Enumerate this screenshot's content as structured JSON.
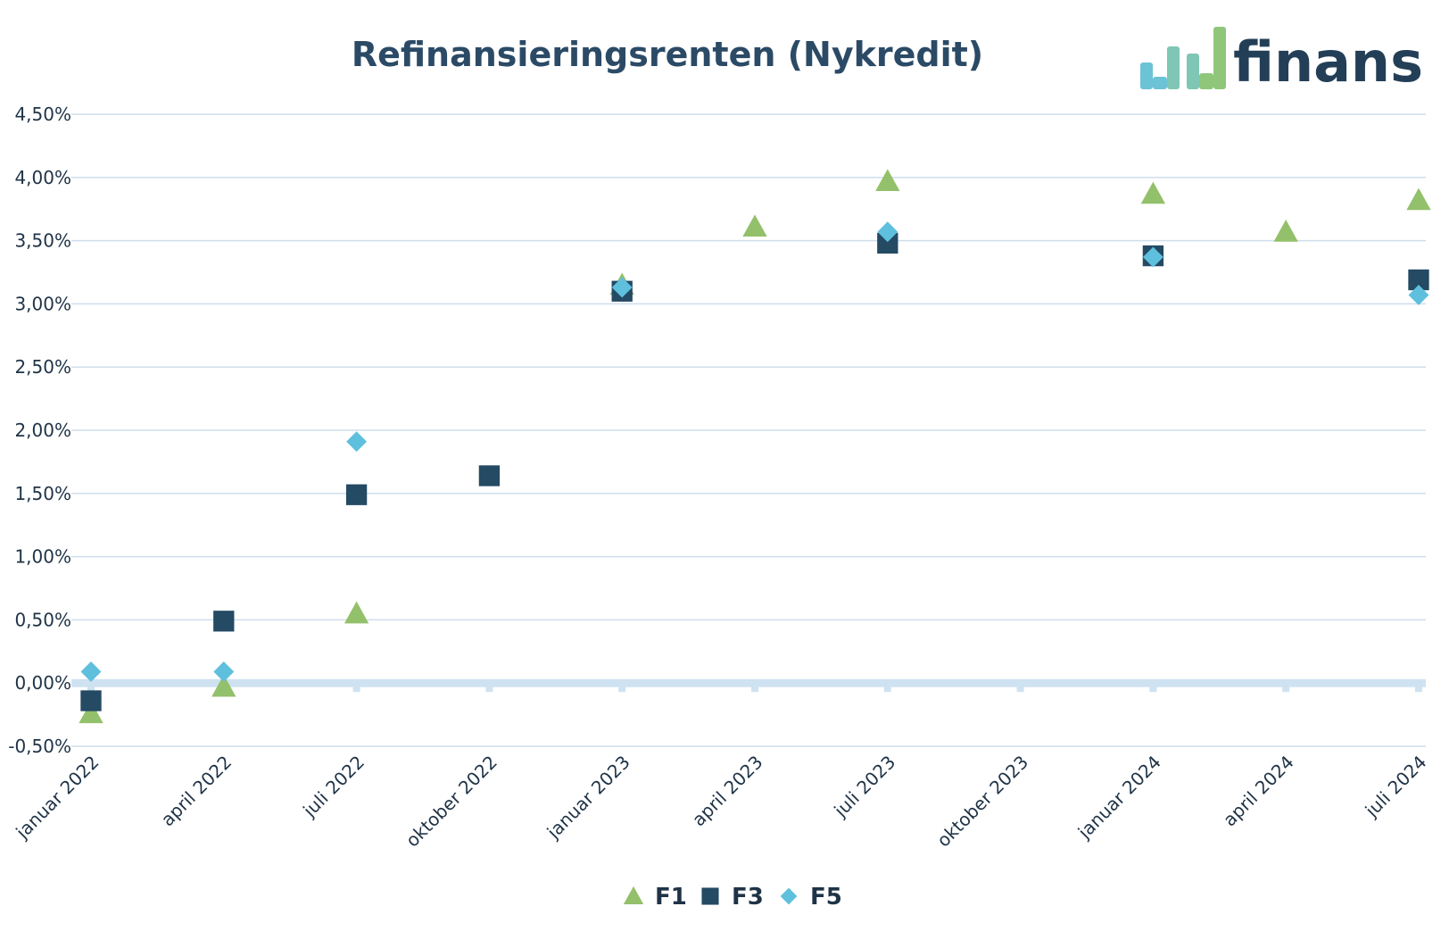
{
  "brand": {
    "name": "finans",
    "logo_colors": [
      "#6cc3d5",
      "#7fc6b4",
      "#8fc67a"
    ],
    "text_color": "#233f57"
  },
  "chart_data": {
    "type": "scatter",
    "title": "Refinansieringsrenten (Nykredit)",
    "xlabel": "",
    "ylabel": "",
    "x_categories": [
      "januar 2022",
      "april 2022",
      "juli 2022",
      "oktober 2022",
      "januar 2023",
      "april 2023",
      "juli 2023",
      "oktober 2023",
      "januar 2024",
      "april 2024",
      "juli 2024"
    ],
    "y_ticks": [
      "4,50%",
      "4,00%",
      "3,50%",
      "3,00%",
      "2,50%",
      "2,00%",
      "1,50%",
      "1,00%",
      "0,50%",
      "0,00%",
      "-0,50%"
    ],
    "y_tick_values": [
      4.5,
      4.0,
      3.5,
      3.0,
      2.5,
      2.0,
      1.5,
      1.0,
      0.5,
      0.0,
      -0.5
    ],
    "ylim": [
      -0.5,
      4.5
    ],
    "grid": true,
    "legend_position": "bottom-center",
    "series": [
      {
        "name": "F1",
        "marker": "triangle",
        "color": "#93c06a",
        "points": [
          {
            "x": "januar 2022",
            "y": -0.24
          },
          {
            "x": "april 2022",
            "y": -0.03
          },
          {
            "x": "juli 2022",
            "y": 0.55
          },
          {
            "x": "januar 2023",
            "y": 3.15
          },
          {
            "x": "april 2023",
            "y": 3.61
          },
          {
            "x": "juli 2023",
            "y": 3.97
          },
          {
            "x": "januar 2024",
            "y": 3.87
          },
          {
            "x": "april 2024",
            "y": 3.57
          },
          {
            "x": "juli 2024",
            "y": 3.82
          }
        ]
      },
      {
        "name": "F3",
        "marker": "square",
        "color": "#244a64",
        "points": [
          {
            "x": "januar 2022",
            "y": -0.14
          },
          {
            "x": "april 2022",
            "y": 0.49
          },
          {
            "x": "juli 2022",
            "y": 1.49
          },
          {
            "x": "oktober 2022",
            "y": 1.64
          },
          {
            "x": "januar 2023",
            "y": 3.1
          },
          {
            "x": "juli 2023",
            "y": 3.48
          },
          {
            "x": "januar 2024",
            "y": 3.38
          },
          {
            "x": "juli 2024",
            "y": 3.19
          }
        ]
      },
      {
        "name": "F5",
        "marker": "diamond",
        "color": "#5ec0dd",
        "points": [
          {
            "x": "januar 2022",
            "y": 0.09
          },
          {
            "x": "april 2022",
            "y": 0.09
          },
          {
            "x": "juli 2022",
            "y": 1.91
          },
          {
            "x": "januar 2023",
            "y": 3.13
          },
          {
            "x": "juli 2023",
            "y": 3.57
          },
          {
            "x": "januar 2024",
            "y": 3.37
          },
          {
            "x": "juli 2024",
            "y": 3.07
          }
        ]
      }
    ],
    "colors": {
      "title": "#2b4a66",
      "ticks": "#1f3347",
      "grid": "#cfdeec",
      "zero_line": "#cfe2f1"
    }
  }
}
